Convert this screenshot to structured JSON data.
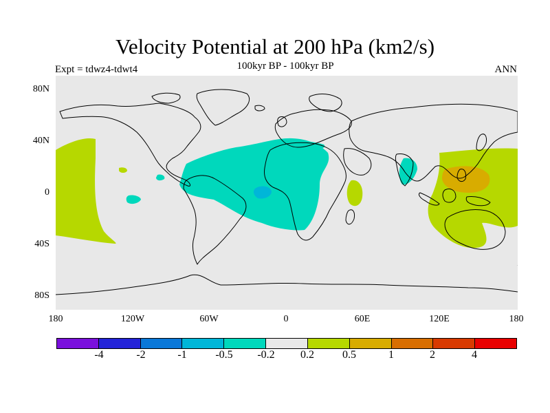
{
  "title": "Velocity Potential at 200 hPa (km2/s)",
  "subtitle": "100kyr BP - 100kyr BP",
  "left_label": "Expt = tdwz4-tdwt4",
  "right_label": "ANN",
  "lat_labels": [
    "80N",
    "40N",
    "0",
    "40S",
    "80S"
  ],
  "lon_labels": [
    "180",
    "120W",
    "60W",
    "0",
    "60E",
    "120E",
    "180"
  ],
  "colorbar": {
    "colors": [
      "#7a10dc",
      "#2424d8",
      "#0a78d8",
      "#00b6d8",
      "#00d8bc",
      "#e8e8e8",
      "#b6d800",
      "#d8ac00",
      "#d86e00",
      "#d83a00",
      "#e80000"
    ],
    "labels": [
      "-4",
      "-2",
      "-1",
      "-0.5",
      "-0.2",
      "0.2",
      "0.5",
      "1",
      "2",
      "4"
    ]
  },
  "map": {
    "background_color": "#e8e8e8",
    "regions": [
      {
        "name": "negative-atlantic",
        "level": "-0.5 to -0.2",
        "color": "#00d8bc"
      },
      {
        "name": "negative-core",
        "level": "-1 to -0.5",
        "color": "#00b6d8"
      },
      {
        "name": "positive-pacific",
        "level": "0.2 to 0.5",
        "color": "#b6d800"
      },
      {
        "name": "positive-core",
        "level": "0.5 to 1",
        "color": "#d8ac00"
      }
    ]
  }
}
